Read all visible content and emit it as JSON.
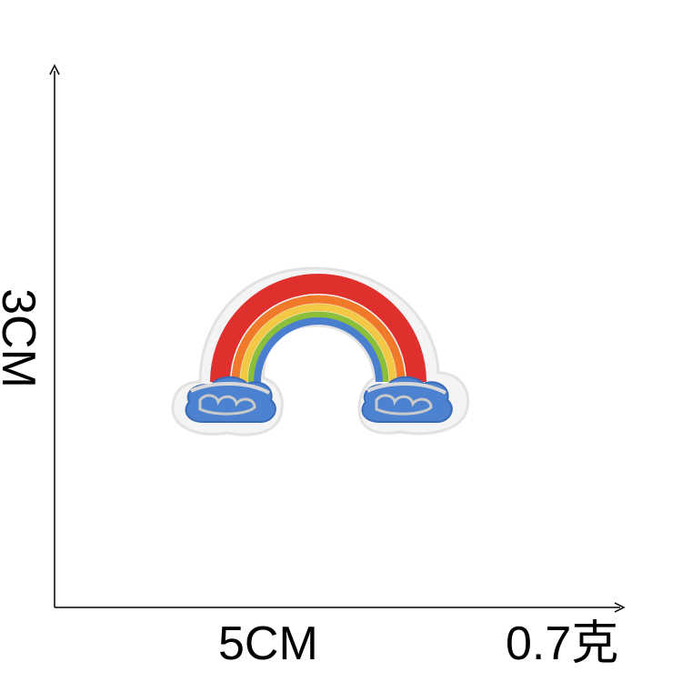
{
  "dimensions": {
    "height": "3CM",
    "width": "5CM",
    "weight": "0.7克"
  },
  "colors": {
    "axis": "#000000",
    "patch_border": "#ececec",
    "red": "#e0302e",
    "orange": "#f07a2a",
    "yellow": "#f3c844",
    "green": "#8bbf3a",
    "blue": "#4a7fd0",
    "cloud_blue": "#4c82cf",
    "silver": "#c9c9c9"
  },
  "product": {
    "icon": "rainbow-embroidered-patch"
  }
}
